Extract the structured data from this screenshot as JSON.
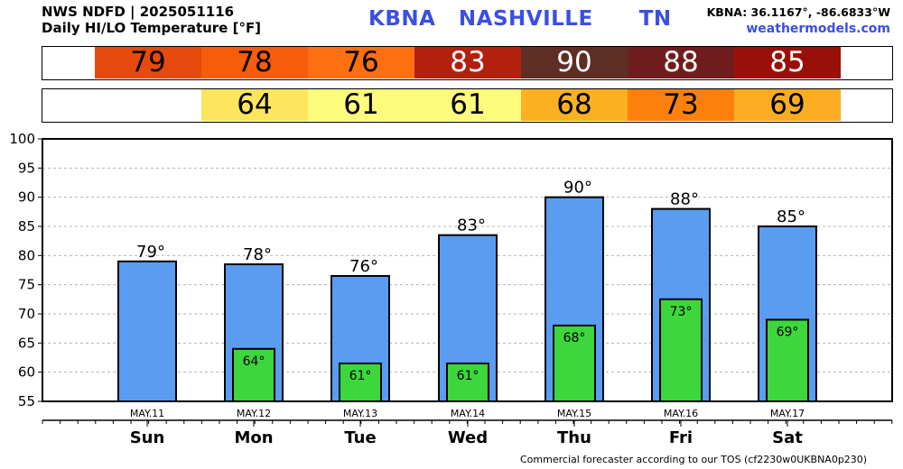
{
  "header": {
    "title_line1": "NWS NDFD | 2025051116",
    "title_line2": "Daily HI/LO Temperature [°F]",
    "station": "KBNA   NASHVILLE      TN",
    "coords": "KBNA: 36.1167°, -86.6833°W",
    "website": "weathermodels.com"
  },
  "footer": "Commercial forecaster according to our TOS (cf2230w0UKBNA0p230)",
  "strips": {
    "hi": [
      {
        "value": "79",
        "bg": "#e64a0c",
        "fg": "#000000"
      },
      {
        "value": "78",
        "bg": "#f75c0a",
        "fg": "#000000"
      },
      {
        "value": "76",
        "bg": "#fd6f10",
        "fg": "#000000"
      },
      {
        "value": "83",
        "bg": "#b3200e",
        "fg": "#ffffff"
      },
      {
        "value": "90",
        "bg": "#5e2e24",
        "fg": "#ffffff"
      },
      {
        "value": "88",
        "bg": "#701c1c",
        "fg": "#ffffff"
      },
      {
        "value": "85",
        "bg": "#9a1008",
        "fg": "#ffffff"
      }
    ],
    "lo": [
      null,
      {
        "value": "64",
        "bg": "#fde65e",
        "fg": "#000000"
      },
      {
        "value": "61",
        "bg": "#fdfc7c",
        "fg": "#000000"
      },
      {
        "value": "61",
        "bg": "#fdfc7c",
        "fg": "#000000"
      },
      {
        "value": "68",
        "bg": "#fbb121",
        "fg": "#000000"
      },
      {
        "value": "73",
        "bg": "#fd800c",
        "fg": "#000000"
      },
      {
        "value": "69",
        "bg": "#fbad21",
        "fg": "#000000"
      }
    ]
  },
  "chart_data": {
    "type": "bar",
    "categories": [
      "Sun",
      "Mon",
      "Tue",
      "Wed",
      "Thu",
      "Fri",
      "Sat"
    ],
    "dates": [
      "MAY.11",
      "MAY.12",
      "MAY.13",
      "MAY.14",
      "MAY.15",
      "MAY.16",
      "MAY.17"
    ],
    "series": [
      {
        "values": [
          79,
          78.5,
          76.5,
          83.5,
          90,
          88,
          85
        ],
        "labels": [
          "79°",
          "78°",
          "76°",
          "83°",
          "90°",
          "88°",
          "85°"
        ],
        "color": "#5a9cf0"
      },
      {
        "values": [
          null,
          64,
          61.5,
          61.5,
          68,
          72.5,
          69
        ],
        "labels": [
          null,
          "64°",
          "61°",
          "61°",
          "68°",
          "73°",
          "69°"
        ],
        "color": "#3dd63d"
      }
    ],
    "ylim": [
      55,
      100
    ],
    "yticks": [
      "55",
      "60",
      "65",
      "70",
      "75",
      "80",
      "85",
      "90",
      "95",
      "100"
    ],
    "grid": true
  }
}
